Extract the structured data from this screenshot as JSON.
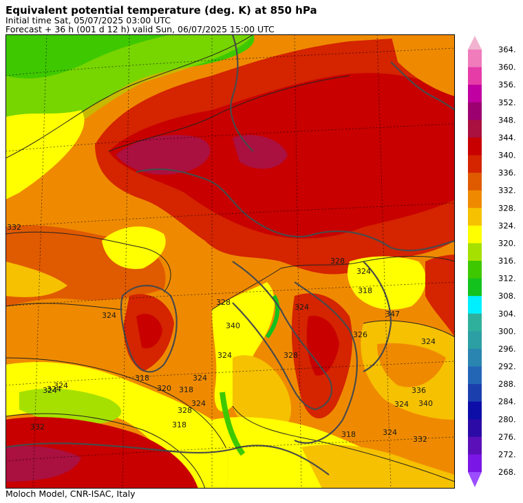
{
  "header": {
    "title": "Equivalent potential temperature (deg. K) at 850 hPa",
    "initial_time": "Initial time  Sat, 05/07/2025  03:00 UTC",
    "forecast": "Forecast  +  36 h  (001 d 12 h)  valid Sun, 06/07/2025 15:00 UTC"
  },
  "footer": "Moloch Model, CNR-ISAC, Italy",
  "legend": {
    "levels": [
      "268.",
      "272.",
      "276.",
      "280.",
      "284.",
      "288.",
      "292.",
      "296.",
      "300.",
      "304.",
      "308.",
      "312.",
      "316.",
      "320.",
      "324.",
      "328.",
      "332.",
      "336.",
      "340.",
      "344.",
      "348.",
      "352.",
      "356.",
      "360.",
      "364."
    ],
    "colors": [
      "#9b4dff",
      "#7a16e6",
      "#5b0fb8",
      "#2b0aa6",
      "#0d0da8",
      "#1c3fae",
      "#2466b6",
      "#2a85b0",
      "#2b9fa4",
      "#2fb09c",
      "#00f0ff",
      "#14c21e",
      "#3ec800",
      "#a6e000",
      "#ffff00",
      "#f6c100",
      "#ef8a00",
      "#e05a00",
      "#d42400",
      "#c80000",
      "#aa1040",
      "#9c0070",
      "#c000a0",
      "#e63ca8",
      "#f07cbc",
      "#f1b3cf"
    ]
  },
  "contour_labels": [
    "332",
    "332",
    "324",
    "318",
    "318",
    "320",
    "324",
    "328",
    "324",
    "318",
    "324",
    "324",
    "340",
    "324",
    "328",
    "324",
    "328",
    "326",
    "324",
    "318",
    "332",
    "324",
    "318",
    "324",
    "324",
    "328",
    "324",
    "336",
    "340",
    "347"
  ]
}
